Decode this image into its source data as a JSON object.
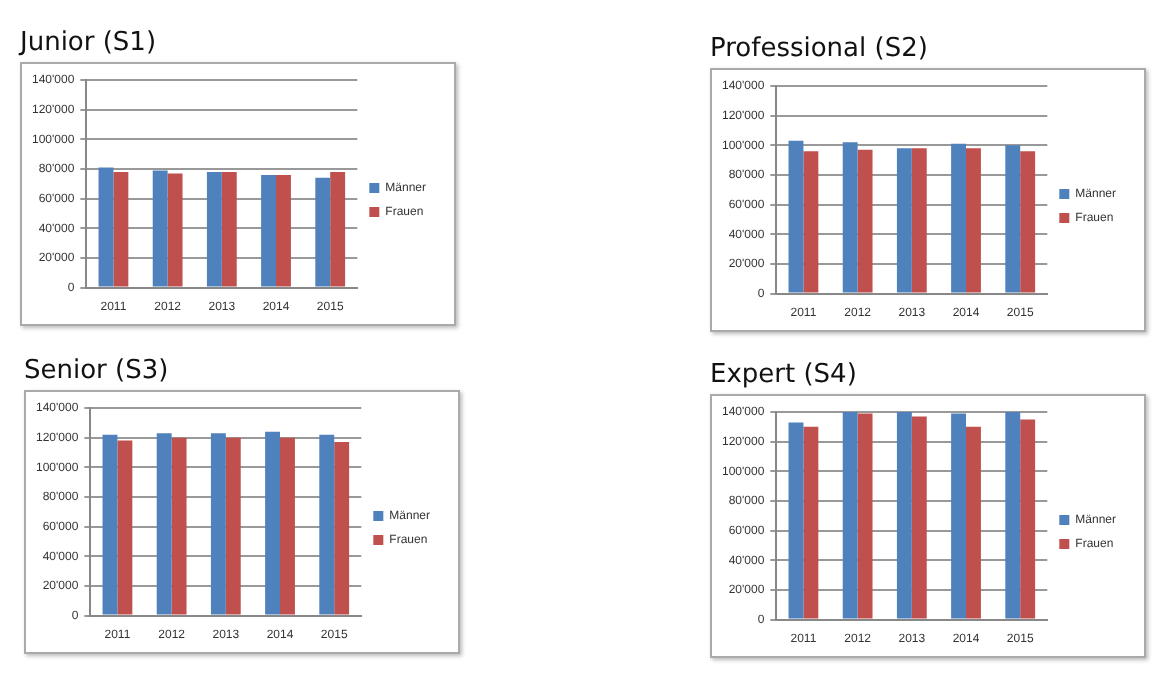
{
  "chart_data": [
    {
      "type": "bar",
      "title": "Junior (S1)",
      "categories": [
        "2011",
        "2012",
        "2013",
        "2014",
        "2015"
      ],
      "series": [
        {
          "name": "Männer",
          "color": "#4f81bd",
          "values": [
            81000,
            79000,
            78000,
            76000,
            74000
          ]
        },
        {
          "name": "Frauen",
          "color": "#c0504d",
          "values": [
            78000,
            77000,
            78000,
            76000,
            78000
          ]
        }
      ],
      "ylim": [
        0,
        140000
      ],
      "yticks": [
        {
          "value": 0,
          "label": "0"
        },
        {
          "value": 20000,
          "label": "20'000"
        },
        {
          "value": 40000,
          "label": "40'000"
        },
        {
          "value": 60000,
          "label": "60'000"
        },
        {
          "value": 80000,
          "label": "80'000"
        },
        {
          "value": 100000,
          "label": "100'000"
        },
        {
          "value": 120000,
          "label": "120'000"
        },
        {
          "value": 140000,
          "label": "140'000"
        }
      ],
      "grid": "y",
      "legend": "right"
    },
    {
      "type": "bar",
      "title": "Professional (S2)",
      "categories": [
        "2011",
        "2012",
        "2013",
        "2014",
        "2015"
      ],
      "series": [
        {
          "name": "Männer",
          "color": "#4f81bd",
          "values": [
            103000,
            102000,
            98000,
            101000,
            100000
          ]
        },
        {
          "name": "Frauen",
          "color": "#c0504d",
          "values": [
            96000,
            97000,
            98000,
            98000,
            96000
          ]
        }
      ],
      "ylim": [
        0,
        140000
      ],
      "yticks": [
        {
          "value": 0,
          "label": "0"
        },
        {
          "value": 20000,
          "label": "20'000"
        },
        {
          "value": 40000,
          "label": "40'000"
        },
        {
          "value": 60000,
          "label": "60'000"
        },
        {
          "value": 80000,
          "label": "80'000"
        },
        {
          "value": 100000,
          "label": "100'000"
        },
        {
          "value": 120000,
          "label": "120'000"
        },
        {
          "value": 140000,
          "label": "140'000"
        }
      ],
      "grid": "y",
      "legend": "right"
    },
    {
      "type": "bar",
      "title": "Senior (S3)",
      "categories": [
        "2011",
        "2012",
        "2013",
        "2014",
        "2015"
      ],
      "series": [
        {
          "name": "Männer",
          "color": "#4f81bd",
          "values": [
            122000,
            123000,
            123000,
            124000,
            122000
          ]
        },
        {
          "name": "Frauen",
          "color": "#c0504d",
          "values": [
            118000,
            120000,
            120000,
            120000,
            117000
          ]
        }
      ],
      "ylim": [
        0,
        140000
      ],
      "yticks": [
        {
          "value": 0,
          "label": "0"
        },
        {
          "value": 20000,
          "label": "20'000"
        },
        {
          "value": 40000,
          "label": "40'000"
        },
        {
          "value": 60000,
          "label": "60'000"
        },
        {
          "value": 80000,
          "label": "80'000"
        },
        {
          "value": 100000,
          "label": "100'000"
        },
        {
          "value": 120000,
          "label": "120'000"
        },
        {
          "value": 140000,
          "label": "140'000"
        }
      ],
      "grid": "y",
      "legend": "right"
    },
    {
      "type": "bar",
      "title": "Expert (S4)",
      "categories": [
        "2011",
        "2012",
        "2013",
        "2014",
        "2015"
      ],
      "series": [
        {
          "name": "Männer",
          "color": "#4f81bd",
          "values": [
            133000,
            140000,
            140000,
            139000,
            140000
          ]
        },
        {
          "name": "Frauen",
          "color": "#c0504d",
          "values": [
            130000,
            139000,
            137000,
            130000,
            135000
          ]
        }
      ],
      "ylim": [
        0,
        140000
      ],
      "yticks": [
        {
          "value": 0,
          "label": "0"
        },
        {
          "value": 20000,
          "label": "20'000"
        },
        {
          "value": 40000,
          "label": "40'000"
        },
        {
          "value": 60000,
          "label": "60'000"
        },
        {
          "value": 80000,
          "label": "80'000"
        },
        {
          "value": 100000,
          "label": "100'000"
        },
        {
          "value": 120000,
          "label": "120'000"
        },
        {
          "value": 140000,
          "label": "140'000"
        }
      ],
      "grid": "y",
      "legend": "right"
    }
  ]
}
